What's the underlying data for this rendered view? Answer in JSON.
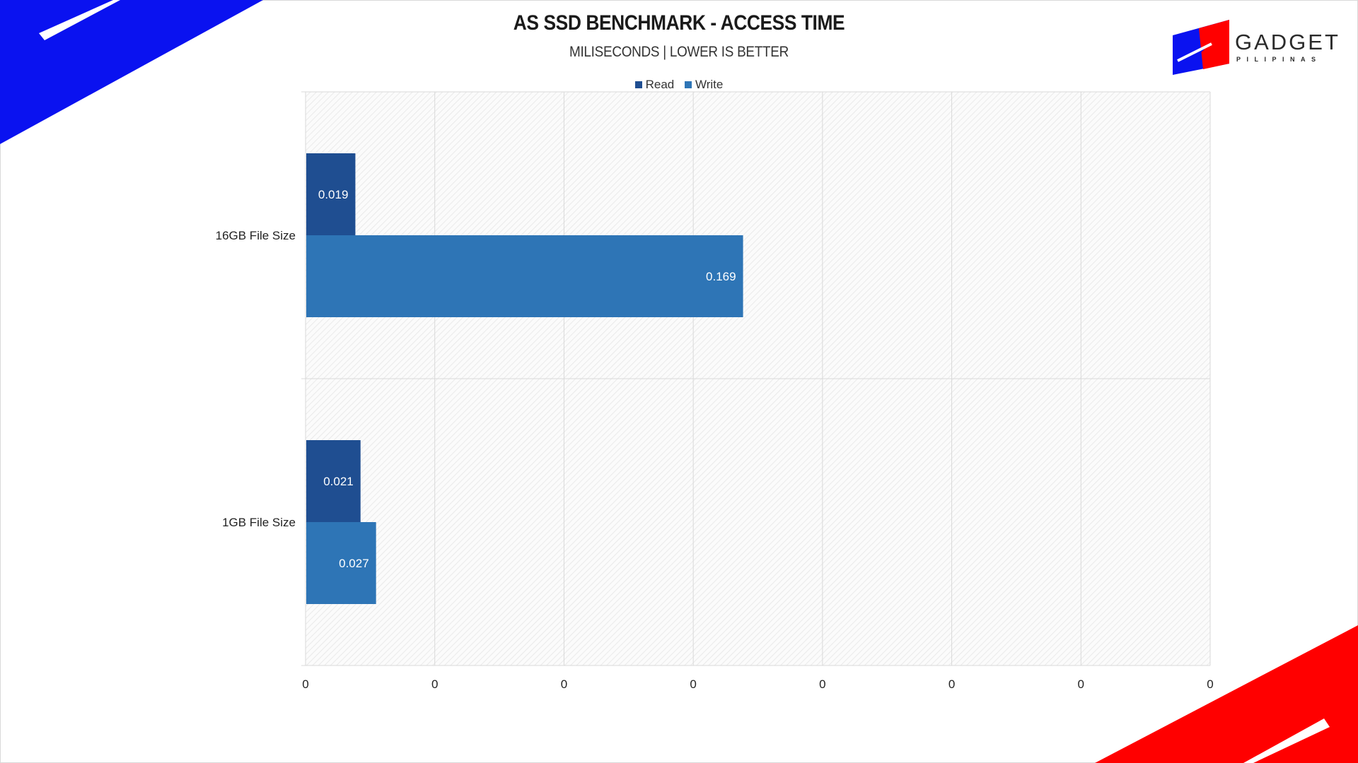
{
  "colors": {
    "blue_accent": "#0a12f0",
    "red_accent": "#ff0000",
    "read": "#1f4e91",
    "write": "#2e75b6"
  },
  "logo": {
    "text": "GADGET",
    "subtext": "PILIPINAS",
    "icon": "gadget-pilipinas-flag-logo"
  },
  "chart_data": {
    "type": "bar",
    "orientation": "horizontal",
    "title": "AS SSD BENCHMARK - ACCESS TIME",
    "subtitle": "MILISECONDS | LOWER IS BETTER",
    "categories": [
      "16GB File Size",
      "1GB File Size"
    ],
    "series": [
      {
        "name": "Read",
        "values": [
          0.019,
          0.021
        ]
      },
      {
        "name": "Write",
        "values": [
          0.169,
          0.027
        ]
      }
    ],
    "xlim": [
      0,
      0.35
    ],
    "x_tick_labels": [
      "0",
      "0",
      "0",
      "0",
      "0",
      "0",
      "0",
      "0"
    ],
    "grid": true,
    "legend": "top"
  }
}
